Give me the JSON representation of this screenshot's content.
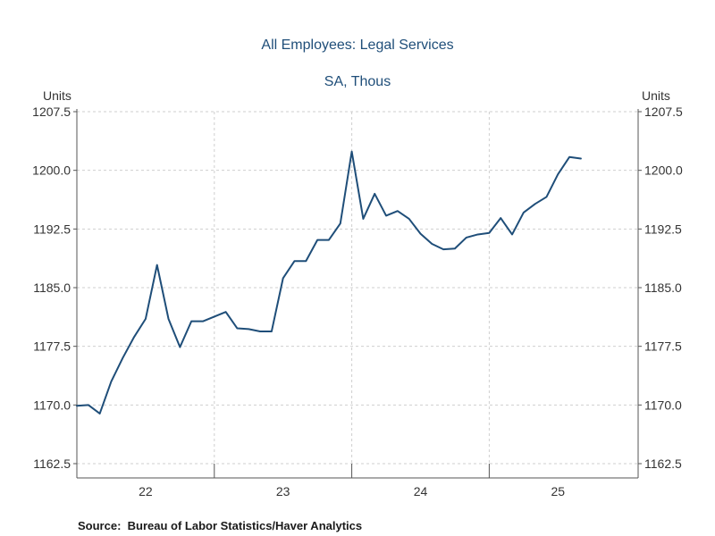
{
  "chart_data": {
    "type": "line",
    "title": "All Employees: Legal Services",
    "subtitle": "SA, Thous",
    "ylabel_left": "Units",
    "ylabel_right": "Units",
    "ylim": [
      1162.5,
      1207.5
    ],
    "yticks": [
      1162.5,
      1170.0,
      1177.5,
      1185.0,
      1192.5,
      1200.0,
      1207.5
    ],
    "ytick_labels": [
      "1162.5",
      "1170.0",
      "1177.5",
      "1185.0",
      "1192.5",
      "1200.0",
      "1207.5"
    ],
    "x_start_month": 0,
    "x_end_month": 49,
    "x_tick_labels": [
      {
        "label": "22",
        "month": 6
      },
      {
        "label": "23",
        "month": 18
      },
      {
        "label": "24",
        "month": 30
      },
      {
        "label": "25",
        "month": 42
      }
    ],
    "year_boundaries": [
      12,
      24,
      36
    ],
    "series": [
      {
        "name": "All Employees: Legal Services",
        "color": "#1f4e79",
        "values": [
          1169.9,
          1170.0,
          1168.9,
          1173.0,
          1176.0,
          1178.7,
          1181.0,
          1187.9,
          1181.0,
          1177.4,
          1180.7,
          1180.7,
          1181.3,
          1181.9,
          1179.8,
          1179.7,
          1179.4,
          1179.4,
          1186.2,
          1188.4,
          1188.4,
          1191.1,
          1191.1,
          1193.2,
          1202.4,
          1193.8,
          1197.0,
          1194.2,
          1194.8,
          1193.8,
          1191.9,
          1190.6,
          1189.9,
          1190.0,
          1191.4,
          1191.8,
          1192.0,
          1193.9,
          1191.8,
          1194.6,
          1195.7,
          1196.6,
          1199.5,
          1201.7,
          1201.5
        ]
      }
    ]
  },
  "footer": {
    "source": "Source:  Bureau of Labor Statistics/Haver Analytics"
  }
}
